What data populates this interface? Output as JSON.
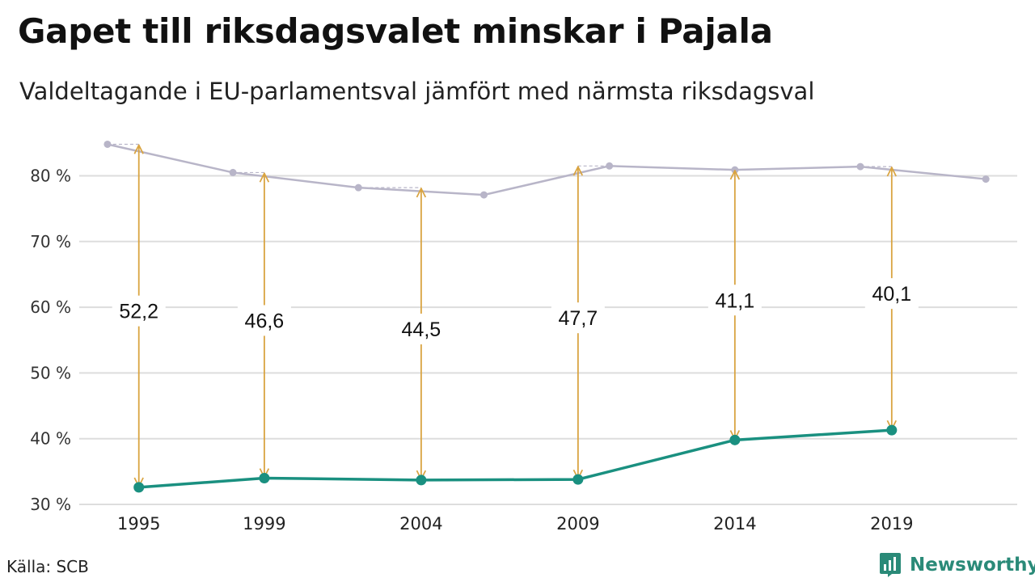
{
  "title": "Gapet till riksdagsvalet minskar i Pajala",
  "subtitle": "Valdeltagande i EU-parlamentsval jämfört med närmsta riksdagsval",
  "source": "Källa: SCB",
  "brand": "Newsworthy",
  "colors": {
    "eu": "#1a9080",
    "riksdag": "#b8b5c8",
    "gap_arrow": "#d9a441",
    "grid": "#dddddd",
    "brand": "#2a8a78"
  },
  "chart_data": {
    "type": "line",
    "title": "Gapet till riksdagsvalet minskar i Pajala",
    "subtitle": "Valdeltagande i EU-parlamentsval jämfört med närmsta riksdagsval",
    "ylim": [
      30,
      88
    ],
    "y_ticks": [
      30,
      40,
      50,
      60,
      70,
      80
    ],
    "y_tick_labels": [
      "30 %",
      "40 %",
      "50 %",
      "60 %",
      "70 %",
      "80 %"
    ],
    "x_tick_labels": [
      "1995",
      "1999",
      "2004",
      "2009",
      "2014",
      "2019"
    ],
    "grid": true,
    "series": [
      {
        "key": "riksdag",
        "x": [
          1994,
          1998,
          2002,
          2006,
          2010,
          2014,
          2018,
          2022
        ],
        "values": [
          84.8,
          80.5,
          78.2,
          77.1,
          81.5,
          80.9,
          81.4,
          79.5
        ]
      },
      {
        "key": "eu",
        "x": [
          1995,
          1999,
          2004,
          2009,
          2014,
          2019
        ],
        "values": [
          32.6,
          34.0,
          33.7,
          33.8,
          39.8,
          41.3
        ]
      }
    ],
    "gaps": [
      {
        "x": 1995,
        "label": "52,2",
        "from": 32.6,
        "to": 84.8
      },
      {
        "x": 1999,
        "label": "46,6",
        "from": 34.0,
        "to": 80.5
      },
      {
        "x": 2004,
        "label": "44,5",
        "from": 33.7,
        "to": 78.2
      },
      {
        "x": 2009,
        "label": "47,7",
        "from": 33.8,
        "to": 81.5
      },
      {
        "x": 2014,
        "label": "41,1",
        "from": 39.8,
        "to": 80.9
      },
      {
        "x": 2019,
        "label": "40,1",
        "from": 41.3,
        "to": 81.4
      }
    ]
  }
}
